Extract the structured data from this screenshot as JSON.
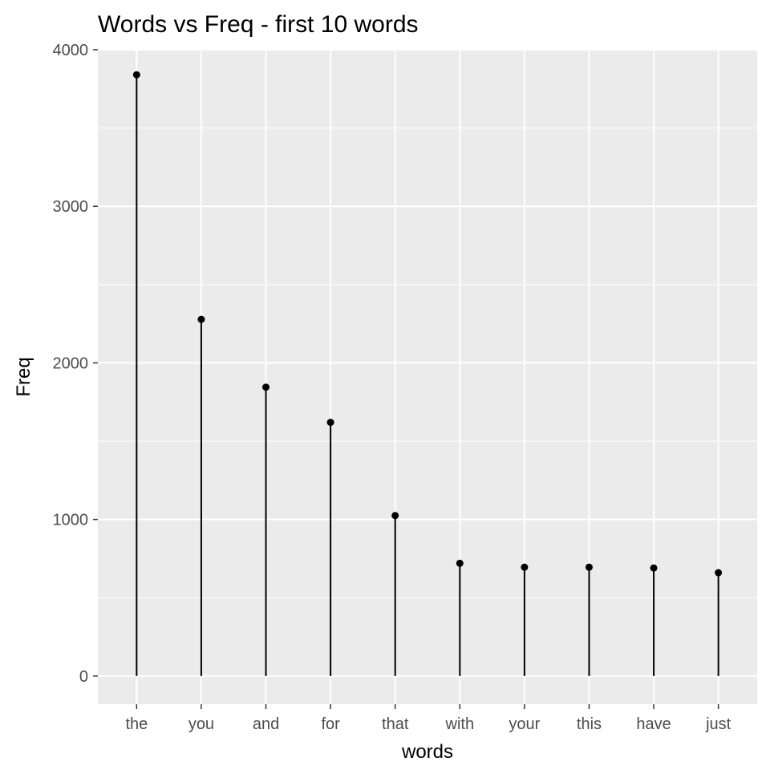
{
  "chart_data": {
    "type": "lollipop",
    "title": "Words vs Freq - first 10 words",
    "xlabel": "words",
    "ylabel": "Freq",
    "categories": [
      "the",
      "you",
      "and",
      "for",
      "that",
      "with",
      "your",
      "this",
      "have",
      "just"
    ],
    "values": [
      3840,
      2278,
      1845,
      1620,
      1025,
      720,
      695,
      695,
      690,
      660
    ],
    "ylim": [
      -180,
      4000
    ],
    "yticks": [
      0,
      1000,
      2000,
      3000,
      4000
    ],
    "grid": true,
    "legend": "none",
    "colors": {
      "panel_background": "#ebebeb",
      "grid": "#ffffff",
      "marks": "#000000",
      "tick_text": "#4d4d4d",
      "tick_mark": "#333333"
    }
  }
}
